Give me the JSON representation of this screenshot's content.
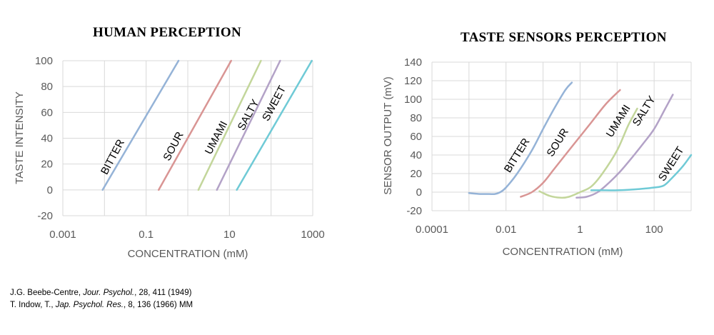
{
  "chart_data": [
    {
      "type": "line",
      "title": "HUMAN PERCEPTION",
      "xlabel": "CONCENTRATION (mM)",
      "ylabel": "TASTE INTENSITY",
      "xscale": "log",
      "xlim": [
        0.001,
        1000
      ],
      "ylim": [
        -20,
        100
      ],
      "xticks": [
        0.001,
        0.1,
        10,
        1000
      ],
      "xtick_labels": [
        "0.001",
        "0.1",
        "10",
        "1000"
      ],
      "yticks": [
        -20,
        0,
        20,
        40,
        60,
        80,
        100
      ],
      "ytick_labels": [
        "-20",
        "0",
        "20",
        "40",
        "60",
        "80",
        "100"
      ],
      "grid": true,
      "series": [
        {
          "name": "BITTER",
          "color": "#95b3d7",
          "x": [
            0.009,
            0.6
          ],
          "y": [
            0,
            100
          ]
        },
        {
          "name": "SOUR",
          "color": "#d99594",
          "x": [
            0.2,
            11
          ],
          "y": [
            0,
            100
          ]
        },
        {
          "name": "UMAMI",
          "color": "#c3d69b",
          "x": [
            1.8,
            57
          ],
          "y": [
            0,
            100
          ]
        },
        {
          "name": "SALTY",
          "color": "#b3a2c7",
          "x": [
            5,
            165
          ],
          "y": [
            0,
            100
          ]
        },
        {
          "name": "SWEET",
          "color": "#6fcad6",
          "x": [
            15,
            950
          ],
          "y": [
            0,
            100
          ]
        }
      ]
    },
    {
      "type": "line",
      "title": "TASTE SENSORS PERCEPTION",
      "xlabel": "CONCENTRATION (mM)",
      "ylabel": "SENSOR OUTPUT (mV)",
      "xscale": "log",
      "xlim": [
        0.0001,
        1000
      ],
      "ylim": [
        -20,
        140
      ],
      "xticks": [
        0.0001,
        0.01,
        1,
        100
      ],
      "xtick_labels": [
        "0.0001",
        "0.01",
        "1",
        "100"
      ],
      "yticks": [
        -20,
        0,
        20,
        40,
        60,
        80,
        100,
        120,
        140
      ],
      "ytick_labels": [
        "-20",
        "0",
        "20",
        "40",
        "60",
        "80",
        "100",
        "120",
        "140"
      ],
      "grid": true,
      "series": [
        {
          "name": "BITTER",
          "color": "#95b3d7",
          "x": [
            0.001,
            0.002,
            0.0035,
            0.005,
            0.007,
            0.01,
            0.02,
            0.05,
            0.1,
            0.2,
            0.4,
            0.6
          ],
          "y": [
            -1,
            -2,
            -2,
            -2,
            0,
            5,
            20,
            45,
            68,
            90,
            110,
            118
          ]
        },
        {
          "name": "SOUR",
          "color": "#d99594",
          "x": [
            0.025,
            0.05,
            0.1,
            0.2,
            0.5,
            1,
            2,
            5,
            12
          ],
          "y": [
            -5,
            0,
            10,
            25,
            45,
            60,
            75,
            95,
            110
          ]
        },
        {
          "name": "UMAMI",
          "color": "#c3d69b",
          "x": [
            0.08,
            0.15,
            0.3,
            0.5,
            1,
            2,
            4,
            10,
            20,
            35
          ],
          "y": [
            1,
            -4,
            -6,
            -5,
            0,
            6,
            20,
            45,
            72,
            90
          ]
        },
        {
          "name": "SALTY",
          "color": "#b3a2c7",
          "x": [
            0.8,
            1.5,
            3,
            6,
            12,
            25,
            50,
            100,
            200,
            320
          ],
          "y": [
            -6,
            -5,
            0,
            10,
            22,
            37,
            52,
            68,
            90,
            105
          ]
        },
        {
          "name": "SWEET",
          "color": "#6fcad6",
          "x": [
            2,
            5,
            10,
            30,
            60,
            100,
            180,
            300,
            600,
            1000
          ],
          "y": [
            2,
            2,
            2,
            3,
            4,
            5,
            7,
            15,
            28,
            40
          ]
        }
      ]
    }
  ],
  "references": [
    {
      "authors": "J.G. Beebe-Centre, ",
      "journal": "Jour. Psychol.",
      "rest": ", 28, 411 (1949)"
    },
    {
      "authors": "T. Indow, T., ",
      "journal": "Jap. Psychol. Res.",
      "rest": ", 8, 136 (1966) MM"
    }
  ]
}
